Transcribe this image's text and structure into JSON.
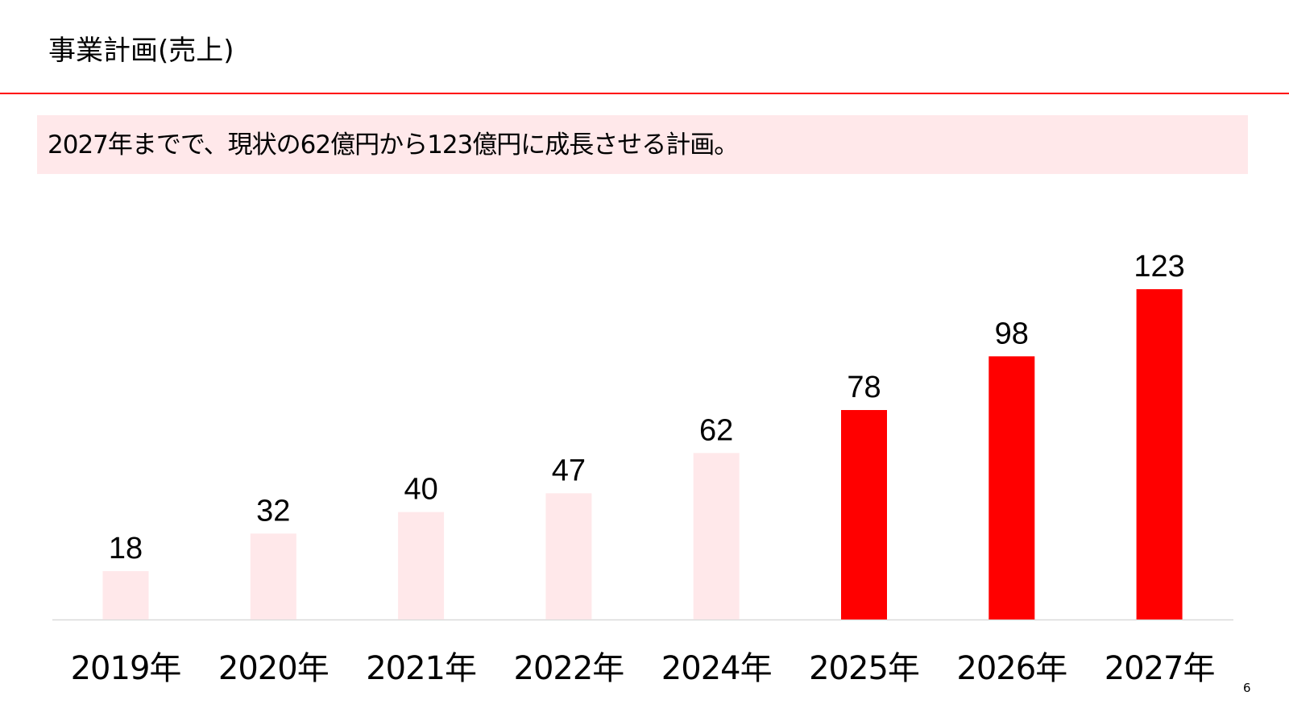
{
  "header": {
    "title": "事業計画(売上)"
  },
  "banner": {
    "text": "2027年までで、現状の62億円から123億円に成長させる計画。"
  },
  "page_number": "6",
  "colors": {
    "accent": "#ff0000",
    "muted_bar": "#ffe8ea",
    "banner_bg": "#ffe8ea",
    "axis": "#d9d9d9"
  },
  "chart_data": {
    "type": "bar",
    "title": "",
    "xlabel": "",
    "ylabel": "",
    "categories": [
      "2019年",
      "2020年",
      "2021年",
      "2022年",
      "2024年",
      "2025年",
      "2026年",
      "2027年"
    ],
    "values": [
      18,
      32,
      40,
      47,
      62,
      78,
      98,
      123
    ],
    "highlight": [
      false,
      false,
      false,
      false,
      false,
      true,
      true,
      true
    ],
    "ylim": [
      0,
      123
    ],
    "grid": false,
    "legend": "none",
    "data_labels": true
  }
}
